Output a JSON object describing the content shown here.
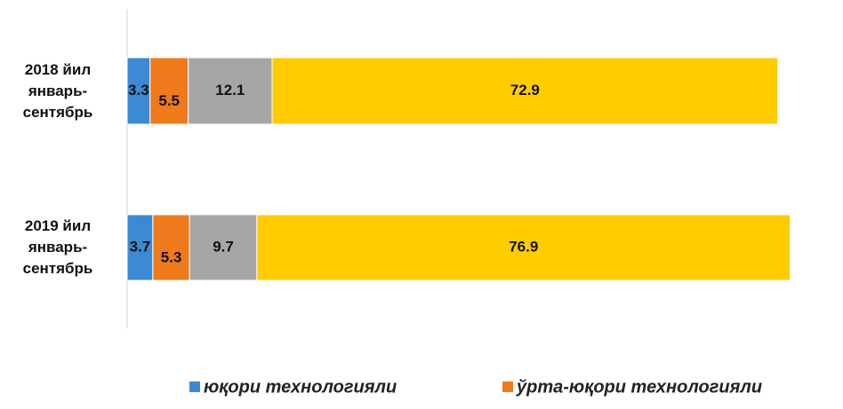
{
  "chart_data": {
    "type": "stacked-bar-horizontal",
    "categories": [
      "2018 йил январь-сентябрь",
      "2019 йил январь-сентябрь"
    ],
    "series": [
      {
        "name": "юқори технологияли",
        "color": "#3a8ad4",
        "values": [
          3.3,
          3.7
        ]
      },
      {
        "name": "ўрта-юқори технологияли",
        "color": "#ef7a1c",
        "values": [
          5.5,
          5.3
        ]
      },
      {
        "color": "#a6a6a6",
        "values": [
          12.1,
          9.7
        ]
      },
      {
        "color": "#ffcc00",
        "values": [
          72.9,
          76.9
        ]
      }
    ],
    "xlim": [
      0,
      100
    ]
  }
}
